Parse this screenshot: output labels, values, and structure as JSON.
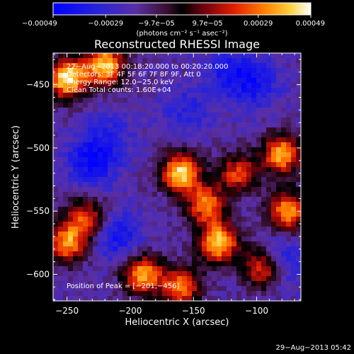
{
  "chart_data": {
    "type": "heatmap",
    "title": "Reconstructed RHESSI Image",
    "xlabel": "Heliocentric X (arcsec)",
    "ylabel": "Heliocentric Y (arcsec)",
    "xlim": [
      -261,
      -65
    ],
    "ylim": [
      -621,
      -425
    ],
    "x_ticks": [
      {
        "value": -250,
        "label": "−250"
      },
      {
        "value": -200,
        "label": "−200"
      },
      {
        "value": -150,
        "label": "−150"
      },
      {
        "value": -100,
        "label": "−100"
      }
    ],
    "y_ticks": [
      {
        "value": -450,
        "label": "−450"
      },
      {
        "value": -500,
        "label": "−500"
      },
      {
        "value": -550,
        "label": "−550"
      },
      {
        "value": -600,
        "label": "−600"
      }
    ],
    "colorbar": {
      "range": [
        -0.00049,
        0.00049
      ],
      "ticks": [
        {
          "value": -0.00049,
          "label": "−0.00049"
        },
        {
          "value": -0.00029,
          "label": "−0.00029"
        },
        {
          "value": -9.7e-05,
          "label": "−9.7e−05"
        },
        {
          "value": 9.7e-05,
          "label": "9.7e−05"
        },
        {
          "value": 0.00029,
          "label": "0.00029"
        },
        {
          "value": 0.00049,
          "label": "0.00049"
        }
      ],
      "units": "(photons cm⁻² s⁻¹ asec⁻²)"
    },
    "annotations": [
      "22−Aug−2013 00:18:20.000 to 00:20:20.000",
      "Detectors: 3F 4F 5F 6F 7F 8F 9F, Att 0",
      "Energy Range: 12.0−25.0 keV",
      "Clean    Total counts: 1.60E+04"
    ],
    "peak_label": "Position of Peak = [−201,−456]",
    "peak": [
      -201,
      -456
    ],
    "bright_regions": [
      {
        "x": -250,
        "y": -445,
        "intensity": 0.00049
      },
      {
        "x": -220,
        "y": -435,
        "intensity": 0.00042
      },
      {
        "x": -160,
        "y": -520,
        "intensity": 0.00045
      },
      {
        "x": -140,
        "y": -545,
        "intensity": 0.0003
      },
      {
        "x": -130,
        "y": -575,
        "intensity": 0.00044
      },
      {
        "x": -80,
        "y": -505,
        "intensity": 0.00038
      },
      {
        "x": -75,
        "y": -550,
        "intensity": 0.00036
      },
      {
        "x": -95,
        "y": -595,
        "intensity": 0.00028
      },
      {
        "x": -250,
        "y": -575,
        "intensity": 0.00034
      },
      {
        "x": -190,
        "y": -600,
        "intensity": 0.00036
      },
      {
        "x": -160,
        "y": -610,
        "intensity": 0.0003
      },
      {
        "x": -115,
        "y": -520,
        "intensity": 0.00022
      },
      {
        "x": -235,
        "y": -555,
        "intensity": 0.00022
      }
    ],
    "baseline": -0.00018,
    "dark_regions": [
      {
        "x": -230,
        "y": -510,
        "intensity": -0.00044
      },
      {
        "x": -210,
        "y": -570,
        "intensity": -0.0004
      },
      {
        "x": -120,
        "y": -440,
        "intensity": -0.00038
      },
      {
        "x": -155,
        "y": -470,
        "intensity": -0.00032
      },
      {
        "x": -100,
        "y": -450,
        "intensity": -0.00036
      },
      {
        "x": -80,
        "y": -590,
        "intensity": -0.00038
      },
      {
        "x": -215,
        "y": -490,
        "intensity": -0.0003
      }
    ]
  },
  "footer_timestamp": "29−Aug−2013 05:42"
}
